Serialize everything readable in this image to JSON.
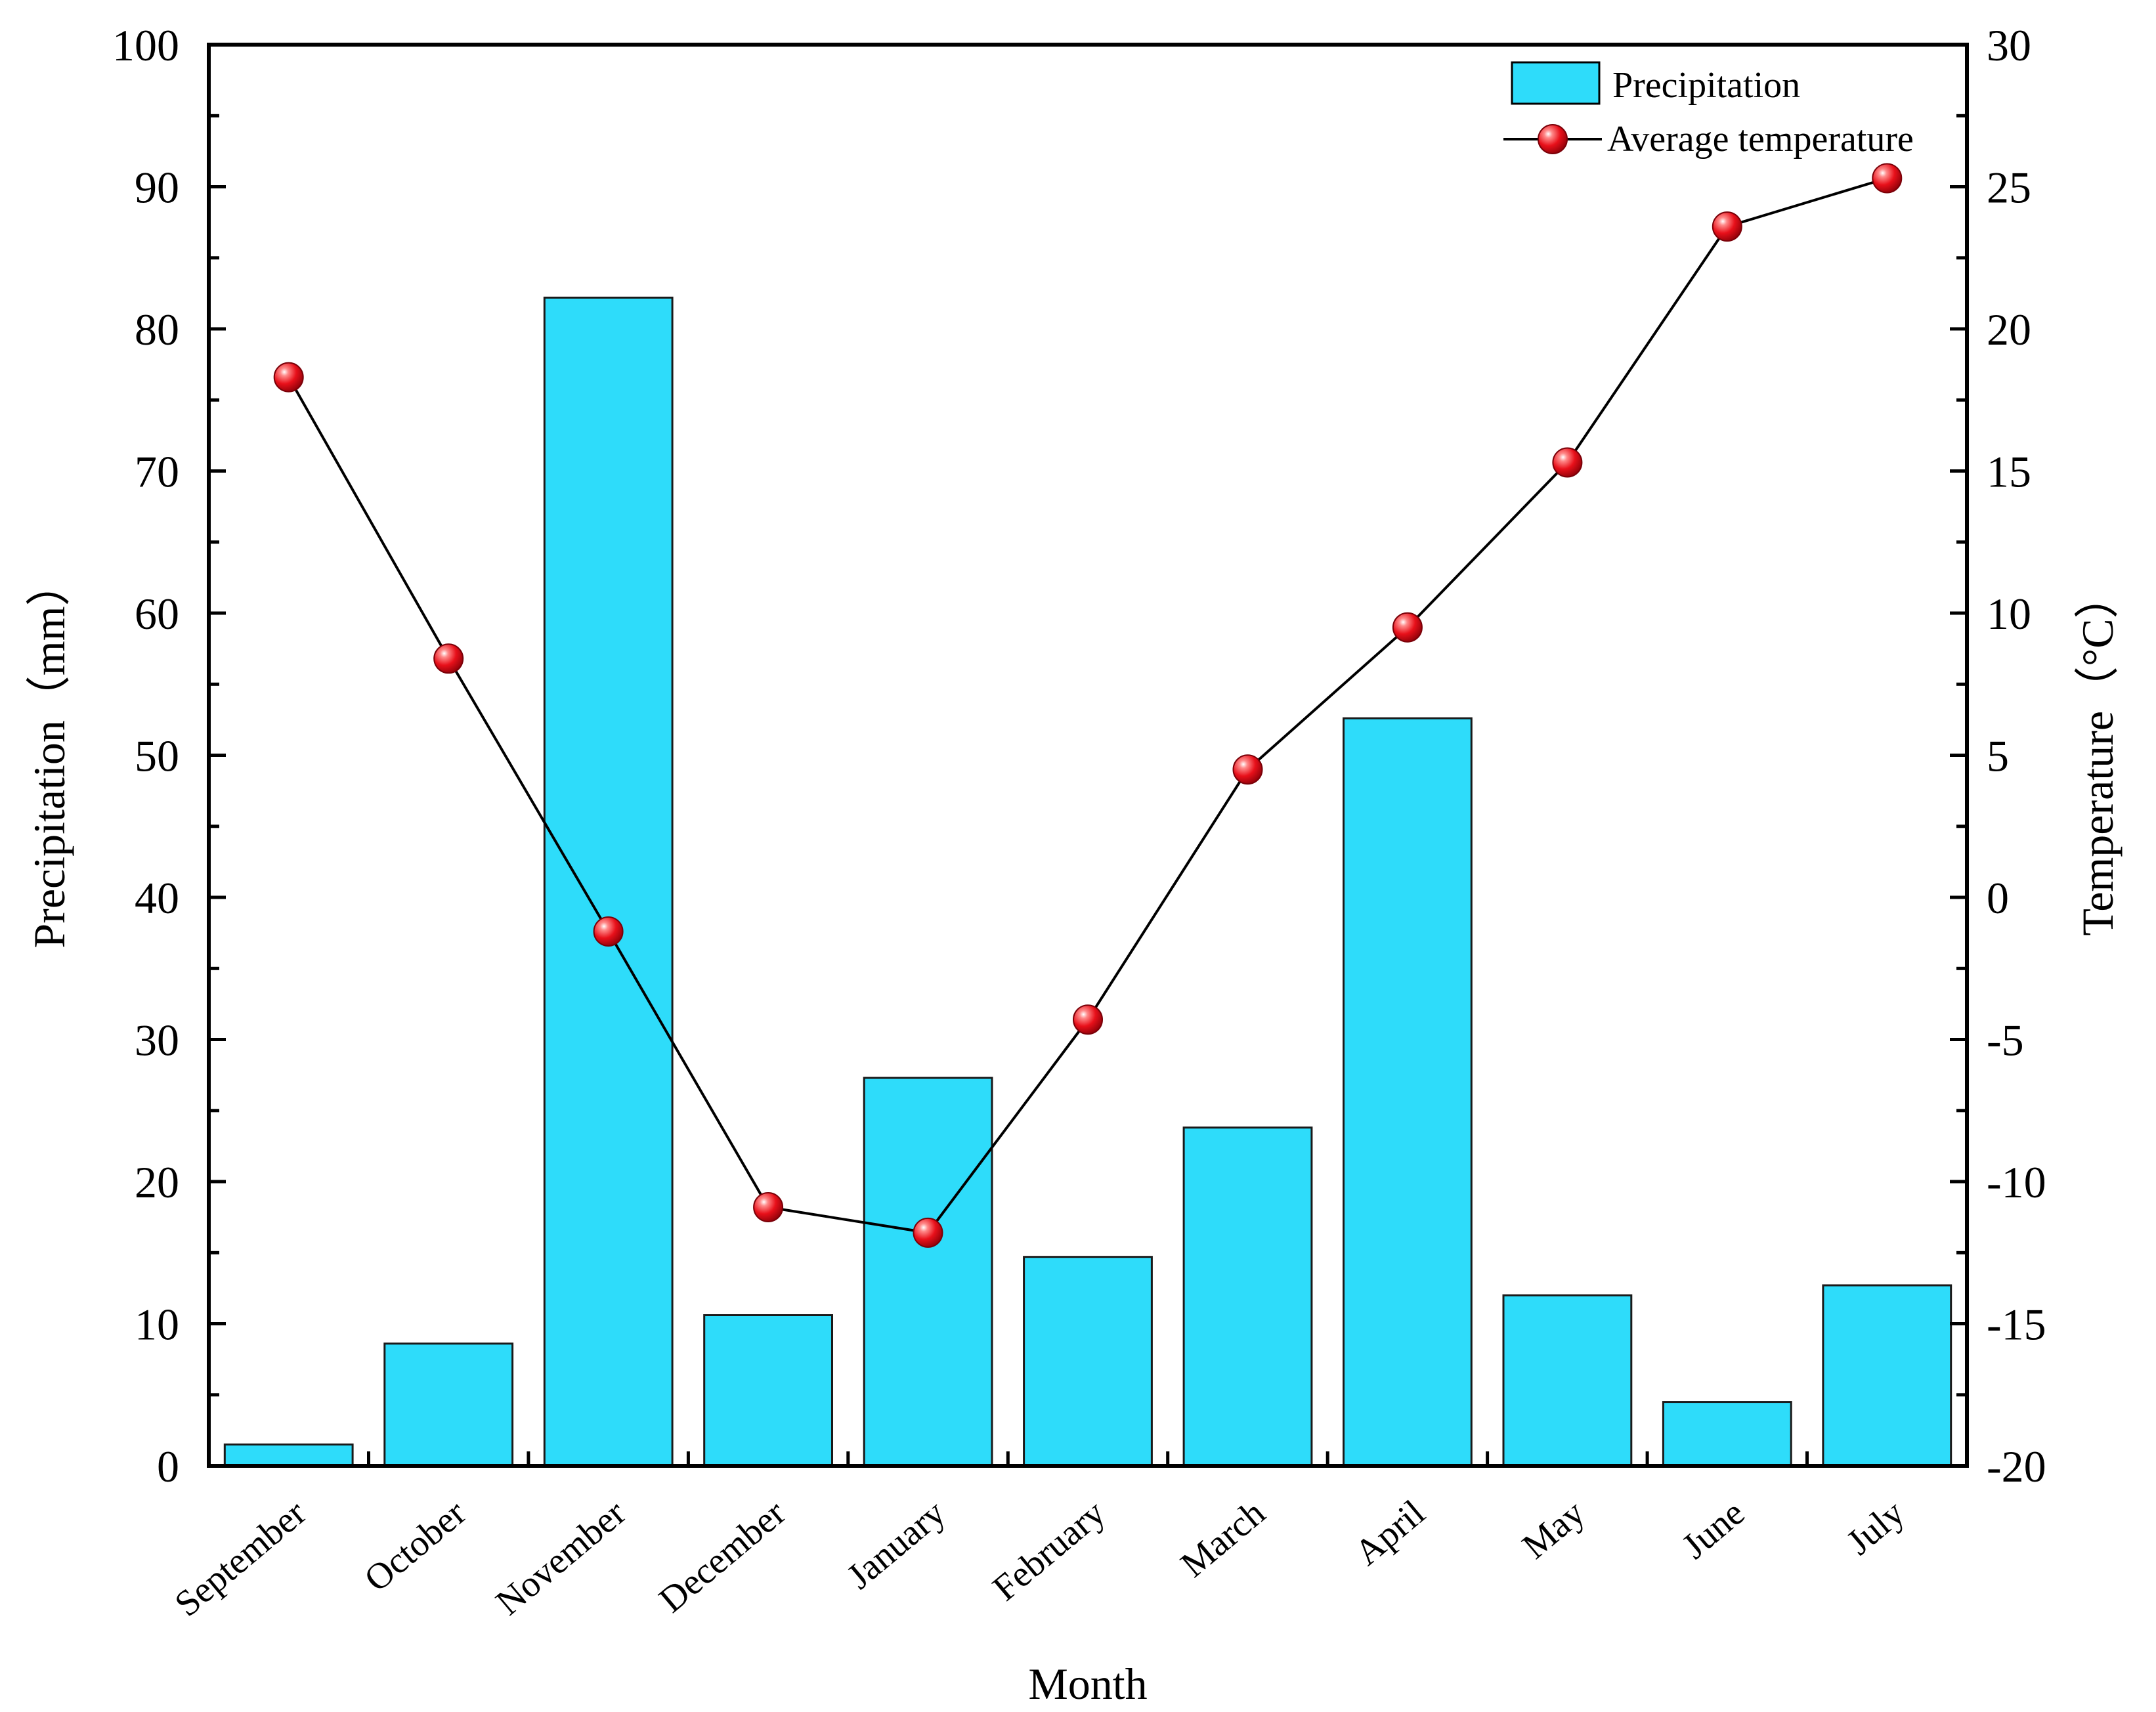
{
  "chart_data": {
    "type": "bar+line",
    "xlabel": "Month",
    "ylabel": "Precipitation（mm）",
    "y2label": "Temperature（°C）",
    "categories": [
      "September",
      "October",
      "November",
      "December",
      "January",
      "February",
      "March",
      "April",
      "May",
      "June",
      "July"
    ],
    "ylim": [
      0,
      100
    ],
    "yticks": [
      "0",
      "10",
      "20",
      "30",
      "40",
      "50",
      "60",
      "70",
      "80",
      "90",
      "100"
    ],
    "y2lim": [
      -20,
      30
    ],
    "y2ticks": [
      "-20",
      "-15",
      "-10",
      "-5",
      "0",
      "5",
      "10",
      "15",
      "20",
      "25",
      "30"
    ],
    "series": [
      {
        "name": "Precipitation",
        "type": "bar",
        "axis": "left",
        "color": "#2EDCFA",
        "values": [
          1.5,
          8.6,
          82.2,
          10.6,
          27.3,
          14.7,
          23.8,
          52.6,
          12.0,
          4.5,
          12.7
        ]
      },
      {
        "name": "Average temperature",
        "type": "line",
        "axis": "right",
        "color": "#E8101A",
        "values": [
          18.3,
          8.4,
          -1.2,
          -10.9,
          -11.8,
          -4.3,
          4.5,
          9.5,
          15.3,
          23.6,
          25.3
        ]
      }
    ],
    "legend": {
      "position": "top-right",
      "entries": [
        "Precipitation",
        "Average temperature"
      ]
    }
  }
}
